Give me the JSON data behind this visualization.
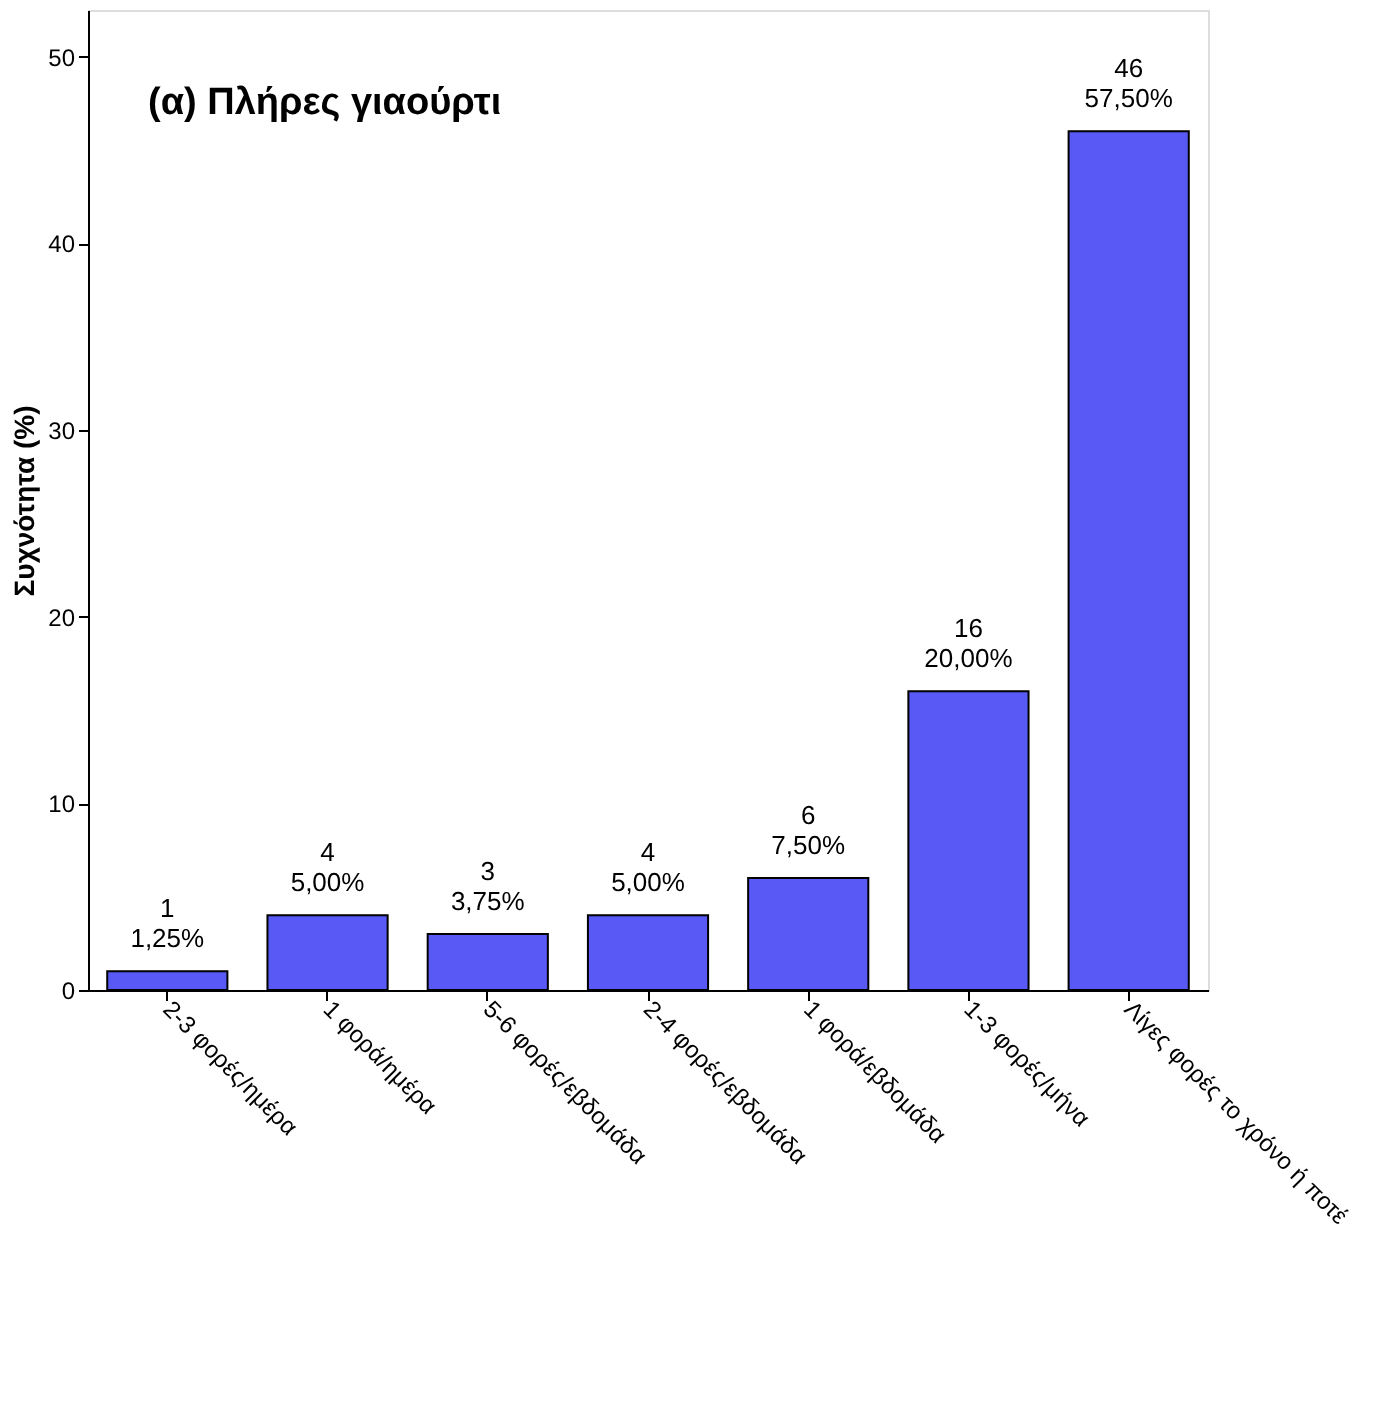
{
  "chart_data": {
    "type": "bar",
    "title": "(α) Πλήρες γιαούρτι",
    "ylabel": "Συχνότητα (%)",
    "categories": [
      "2-3 φορές/ημέρα",
      "1 φορά/ημέρα",
      "5-6 φορές/εβδομάδα",
      "2-4 φορές/εβδομάδα",
      "1 φορά/εβδομάδα",
      "1-3 φορές/μήνα",
      "Λίγες φορές το χρόνο ή ποτέ"
    ],
    "values": [
      1,
      4,
      3,
      4,
      6,
      16,
      46
    ],
    "value_labels": [
      "1\n1,25%",
      "4\n5,00%",
      "3\n3,75%",
      "4\n5,00%",
      "6\n7,50%",
      "16\n20,00%",
      "46\n57,50%"
    ],
    "color": "#5959f5",
    "ylim": [
      0,
      52.5
    ],
    "yticks": [
      0,
      10,
      20,
      30,
      40,
      50
    ],
    "grid": false
  }
}
